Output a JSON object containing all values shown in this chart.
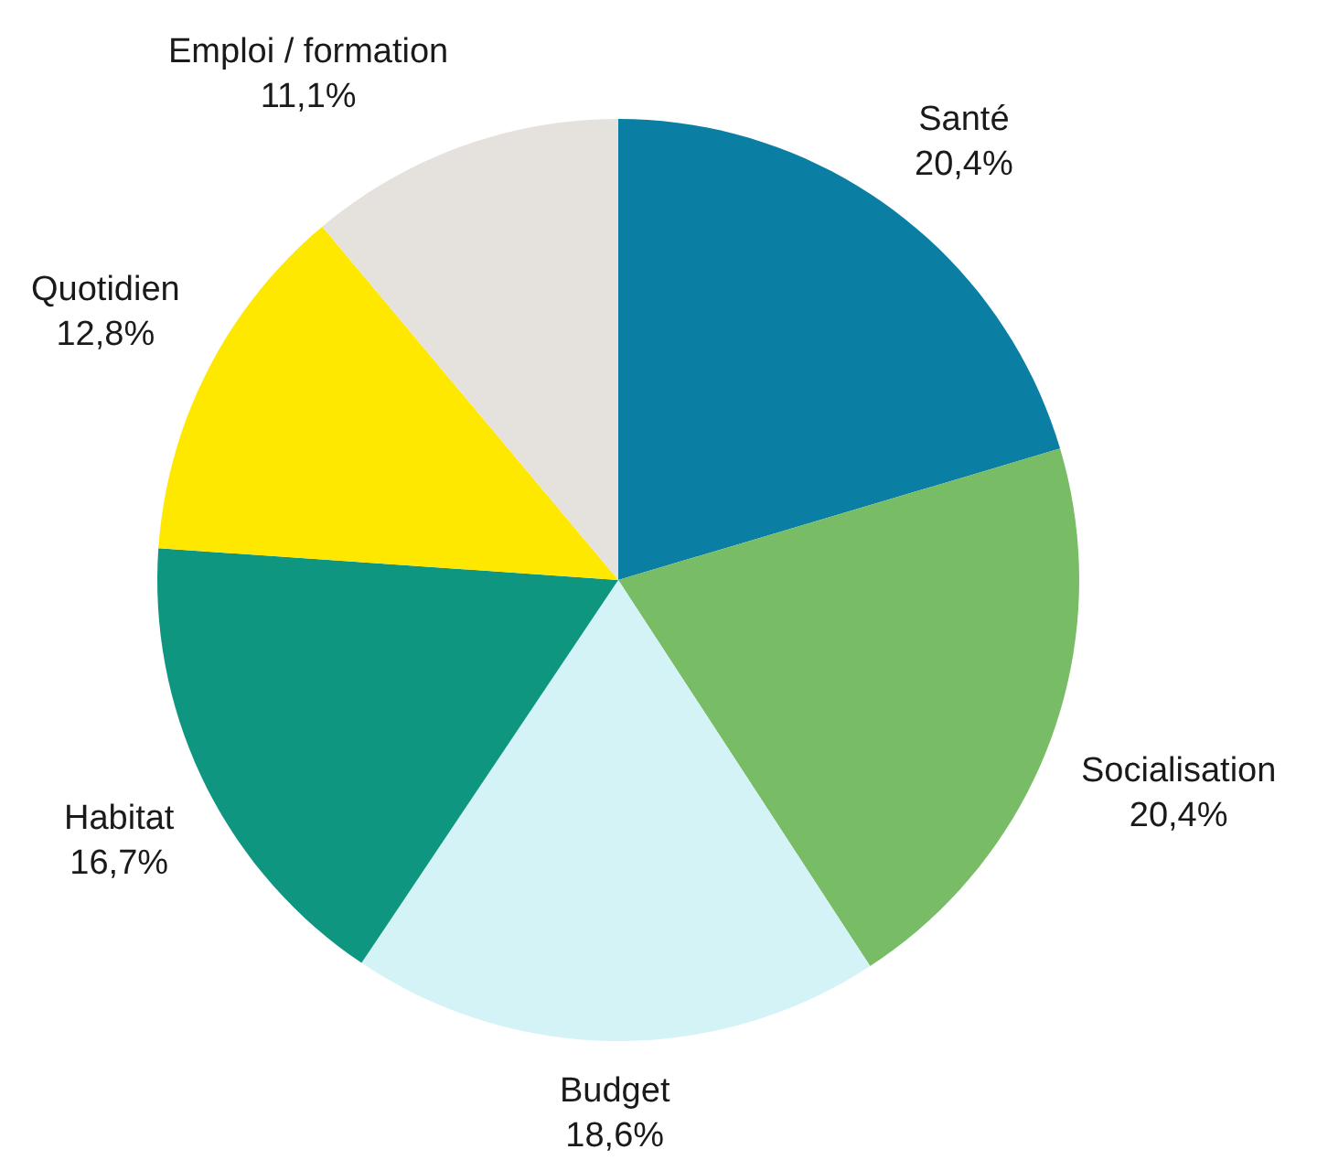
{
  "chart_data": {
    "type": "pie",
    "categories": [
      "Santé",
      "Socialisation",
      "Budget",
      "Habitat",
      "Quotidien",
      "Emploi / formation"
    ],
    "values": [
      20.4,
      20.4,
      18.6,
      16.7,
      12.8,
      11.1
    ],
    "value_labels": [
      "20,4%",
      "20,4%",
      "18,6%",
      "16,7%",
      "12,8%",
      "11,1%"
    ],
    "colors": [
      "#0b7fa3",
      "#78bc65",
      "#d4f3f7",
      "#0f9680",
      "#ffe800",
      "#e5e2de"
    ],
    "legend": false
  }
}
